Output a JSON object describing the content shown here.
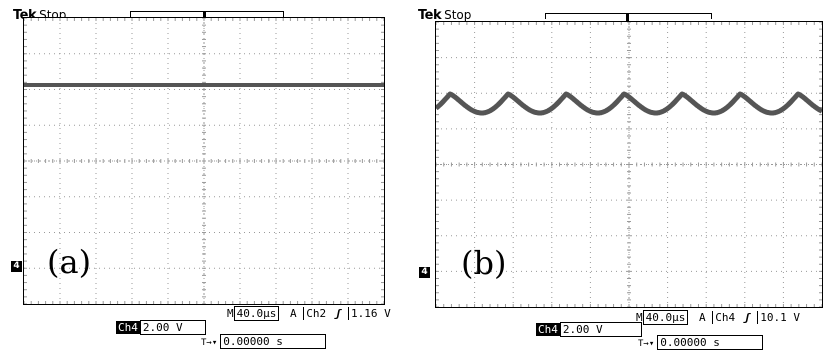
{
  "panels": [
    {
      "label": "(a)",
      "brand": "Tek",
      "state": "Stop",
      "trigger_marker": "T",
      "ground_marker": "4",
      "timebase_prefix": "M",
      "timebase": "40.0µs",
      "trigger_mode": "A",
      "trigger_channel": "Ch2",
      "trigger_slope_icon": "rising-edge-icon",
      "trigger_slope_glyph": "ʃ",
      "trigger_level": "1.16 V",
      "channel": "Ch4",
      "volts_per_div": "2.00 V",
      "trigger_pos_glyph": "🅃→▾",
      "trigger_position": "0.00000 s",
      "waveform": "flat"
    },
    {
      "label": "(b)",
      "brand": "Tek",
      "state": "Stop",
      "trigger_marker": "T",
      "ground_marker": "4",
      "timebase_prefix": "M",
      "timebase": "40.0µs",
      "trigger_mode": "A",
      "trigger_channel": "Ch4",
      "trigger_slope_icon": "rising-edge-icon",
      "trigger_slope_glyph": "ʃ",
      "trigger_level": "10.1 V",
      "channel": "Ch4",
      "volts_per_div": "2.00 V",
      "trigger_pos_glyph": "🅃→▾",
      "trigger_position": "0.00000 s",
      "waveform": "ripple"
    }
  ],
  "colors": {
    "grid": "#9a9a9a",
    "trace": "#555555"
  }
}
